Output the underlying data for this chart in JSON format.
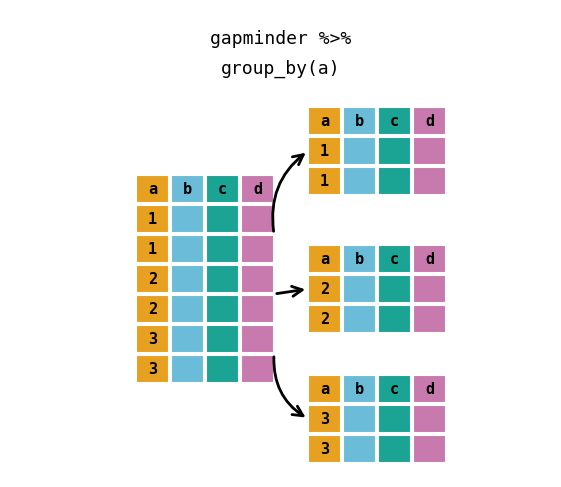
{
  "title_line1": "gapminder %>%",
  "title_line2": "group_by(a)",
  "col_colors": [
    "#E8A020",
    "#6BBCD8",
    "#1BA394",
    "#C87AAE"
  ],
  "col_labels": [
    "a",
    "b",
    "c",
    "d"
  ],
  "left_col_a": [
    "1",
    "1",
    "2",
    "2",
    "3",
    "3"
  ],
  "group1_rows": [
    "1",
    "1"
  ],
  "group2_rows": [
    "2",
    "2"
  ],
  "group3_rows": [
    "3",
    "3"
  ],
  "bg_color": "#FFFFFF",
  "cell_text_color": "#000000",
  "title_color": "#000000"
}
